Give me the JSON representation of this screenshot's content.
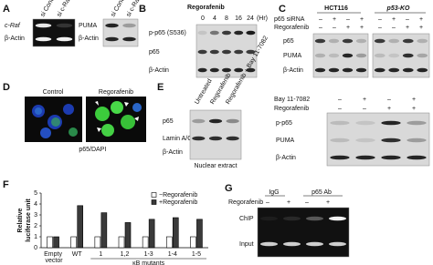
{
  "panels": {
    "A": {
      "label": "A",
      "left": {
        "columns": [
          "si Control",
          "si c-Raf"
        ],
        "rows": [
          "c-Raf",
          "β-Actin"
        ]
      },
      "right": {
        "columns": [
          "si Control",
          "si c-Raf"
        ],
        "rows": [
          "PUMA",
          "β-Actin"
        ]
      }
    },
    "B": {
      "label": "B",
      "treatment": "Regorafenib",
      "timepoints": [
        "0",
        "4",
        "8",
        "16",
        "24"
      ],
      "unit": "(Hr)",
      "rows": [
        "p-p65 (S536)",
        "p65",
        "β-Actin"
      ]
    },
    "C": {
      "label": "C",
      "groups": [
        "HCT116",
        "p53-KO"
      ],
      "conditions": [
        {
          "name": "p65 siRNA",
          "signs": [
            "–",
            "+",
            "–",
            "+",
            "–",
            "+",
            "–",
            "+"
          ]
        },
        {
          "name": "Regorafenib",
          "signs": [
            "–",
            "–",
            "+",
            "+",
            "–",
            "–",
            "+",
            "+"
          ]
        }
      ],
      "rows": [
        "p65",
        "PUMA",
        "β-Actin"
      ]
    },
    "D": {
      "label": "D",
      "columns": [
        "Control",
        "Regorafenib"
      ],
      "stain": [
        "p65",
        "/DAPI"
      ]
    },
    "E": {
      "label": "E",
      "columns": [
        "Untreated",
        "Regorafenib",
        "Regorafenib + Bay 11-7082"
      ],
      "rows": [
        "p65",
        "Lamin A/C",
        "β-Actin"
      ],
      "caption": "Nuclear extract",
      "right": {
        "conditions": [
          {
            "name": "Bay 11-7082",
            "signs": [
              "–",
              "+",
              "–",
              "+"
            ]
          },
          {
            "name": "Regorafenib",
            "signs": [
              "–",
              "–",
              "+",
              "+"
            ]
          }
        ],
        "rows": [
          "p-p65",
          "PUMA",
          "β-Actin"
        ]
      }
    },
    "F": {
      "label": "F"
    },
    "G": {
      "label": "G",
      "groups": [
        "IgG",
        "p65 Ab"
      ],
      "condition": {
        "name": "Regorafenib",
        "signs": [
          "–",
          "+",
          "–",
          "+"
        ]
      },
      "rows": [
        "ChIP",
        "Input"
      ]
    }
  },
  "chart_data": {
    "type": "bar",
    "ylabel": [
      "Relative",
      "luciferase unit"
    ],
    "categories": [
      "Empty vector",
      "WT",
      "1",
      "1,2",
      "1-3",
      "1-4",
      "1-5"
    ],
    "group_label": "κB mutants",
    "series": [
      {
        "name": "−Regorafenib",
        "color": "#ffffff",
        "values": [
          1,
          1,
          1,
          1,
          1,
          1,
          1
        ]
      },
      {
        "name": "+Regorafenib",
        "color": "#3a3a3a",
        "values": [
          1,
          3.85,
          3.2,
          2.3,
          2.6,
          2.75,
          2.6
        ]
      }
    ],
    "ylim": [
      0,
      5
    ],
    "yticks": [
      0,
      1,
      2,
      3,
      4,
      5
    ],
    "legend": "top-right"
  }
}
